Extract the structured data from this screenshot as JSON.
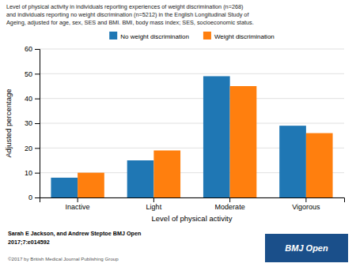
{
  "chart_data": {
    "type": "bar",
    "title": "Level of physical activity in individuals reporting experiences of weight discrimination (n=268)\nand individuals reporting no weight discrimination (n=5212) in the English Longitudinal Study of\nAgeing, adjusted for age, sex, SES and BMI. BMI, body mass index; SES, socioeconomic status.",
    "xlabel": "Level of physical activity",
    "ylabel": "Adjusted percentage",
    "categories": [
      "Inactive",
      "Light",
      "Moderate",
      "Vigorous"
    ],
    "series": [
      {
        "name": "No weight discrimination",
        "values": [
          8,
          15,
          49,
          29
        ]
      },
      {
        "name": "Weight discrimination",
        "values": [
          10,
          19,
          45,
          26
        ]
      }
    ],
    "ylim": [
      0,
      60
    ],
    "yticks": [
      0,
      10,
      20,
      30,
      40,
      50,
      60
    ],
    "grid": true,
    "legend": "top",
    "annotations": [
      {
        "text": "Sarah E Jackson, and Andrew Steptoe BMJ Open"
      },
      {
        "text": "2017;7:e014592"
      },
      {
        "text": "©2017 by British Medical Journal Publishing Group"
      },
      {
        "text": "BMJ Open",
        "color": "#1a4f8a"
      }
    ]
  }
}
